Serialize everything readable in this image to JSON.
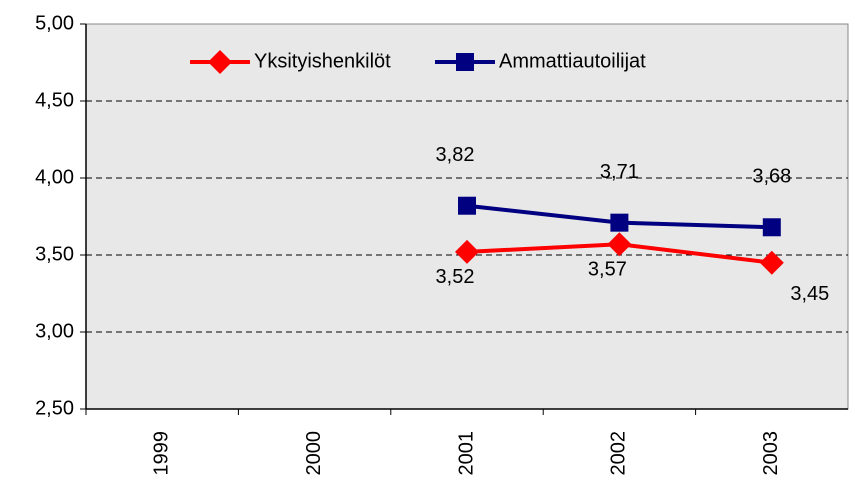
{
  "chart_data": {
    "type": "line",
    "categories": [
      "1999",
      "2000",
      "2001",
      "2002",
      "2003"
    ],
    "series": [
      {
        "name": "Yksityishenkilöt",
        "color": "#ff0000",
        "marker": "diamond",
        "values": [
          null,
          null,
          3.52,
          3.57,
          3.45
        ],
        "value_labels": [
          null,
          null,
          "3,52",
          "3,57",
          "3,45"
        ]
      },
      {
        "name": "Ammattiautoilijat",
        "color": "#000080",
        "marker": "square",
        "values": [
          null,
          null,
          3.82,
          3.71,
          3.68
        ],
        "value_labels": [
          null,
          null,
          "3,82",
          "3,71",
          "3,68"
        ]
      }
    ],
    "ylim": [
      2.5,
      5.0
    ],
    "yticks": [
      {
        "value": 2.5,
        "label": "2,50"
      },
      {
        "value": 3.0,
        "label": "3,00"
      },
      {
        "value": 3.5,
        "label": "3,50"
      },
      {
        "value": 4.0,
        "label": "4,00"
      },
      {
        "value": 4.5,
        "label": "4,50"
      },
      {
        "value": 5.0,
        "label": "5,00"
      }
    ],
    "grid": true,
    "legend": "top"
  }
}
